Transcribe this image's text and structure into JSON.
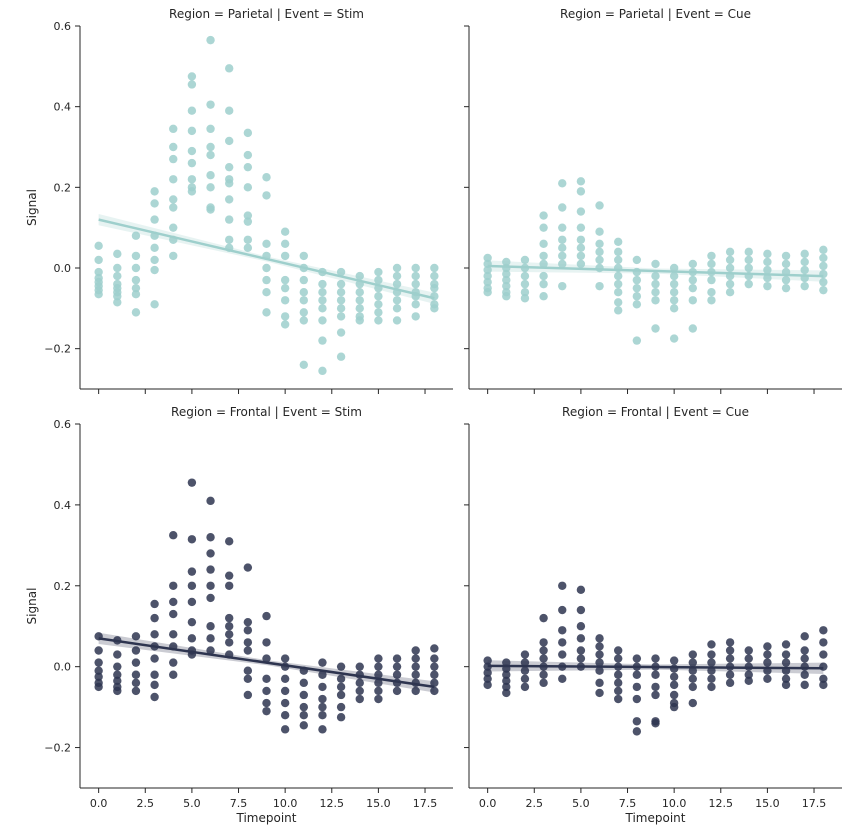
{
  "chart_data": {
    "type": "scatter",
    "layout": "facet-grid 2x2 (rows: Region, cols: Event), shared axes",
    "xlabel": "Timepoint",
    "ylabel": "Signal",
    "xlim": [
      -1,
      19
    ],
    "ylim": [
      -0.3,
      0.6
    ],
    "xticks": [
      0.0,
      2.5,
      5.0,
      7.5,
      10.0,
      12.5,
      15.0,
      17.5
    ],
    "xtick_labels": [
      "0.0",
      "2.5",
      "5.0",
      "7.5",
      "10.0",
      "12.5",
      "15.0",
      "17.5"
    ],
    "yticks": [
      -0.2,
      0.0,
      0.2,
      0.4,
      0.6
    ],
    "ytick_labels": [
      "−0.2",
      "0.0",
      "0.2",
      "0.4",
      "0.6"
    ],
    "grid": false,
    "facets": [
      {
        "title": "Region = Parietal | Event = Stim",
        "color": "#9ecfcc",
        "regression": {
          "x": [
            0,
            18
          ],
          "y": [
            0.12,
            -0.075
          ]
        },
        "points": [
          {
            "x": 0,
            "y": [
              0.055,
              0.02,
              -0.01,
              -0.025,
              -0.035,
              -0.045,
              -0.055,
              -0.065
            ]
          },
          {
            "x": 1,
            "y": [
              0.035,
              0.0,
              -0.02,
              -0.04,
              -0.05,
              -0.06,
              -0.07,
              -0.085
            ]
          },
          {
            "x": 2,
            "y": [
              0.08,
              0.03,
              0.0,
              -0.03,
              -0.05,
              -0.065,
              -0.11
            ]
          },
          {
            "x": 3,
            "y": [
              0.19,
              0.16,
              0.12,
              0.08,
              0.05,
              0.02,
              -0.005,
              -0.09
            ]
          },
          {
            "x": 4,
            "y": [
              0.345,
              0.3,
              0.27,
              0.22,
              0.17,
              0.15,
              0.1,
              0.07,
              0.03
            ]
          },
          {
            "x": 5,
            "y": [
              0.475,
              0.455,
              0.39,
              0.34,
              0.29,
              0.26,
              0.22,
              0.2,
              0.19
            ]
          },
          {
            "x": 6,
            "y": [
              0.565,
              0.405,
              0.345,
              0.3,
              0.28,
              0.23,
              0.2,
              0.15,
              0.145
            ]
          },
          {
            "x": 7,
            "y": [
              0.495,
              0.39,
              0.315,
              0.25,
              0.22,
              0.21,
              0.17,
              0.12,
              0.07,
              0.05
            ]
          },
          {
            "x": 8,
            "y": [
              0.335,
              0.28,
              0.25,
              0.2,
              0.13,
              0.115,
              0.07,
              0.05
            ]
          },
          {
            "x": 9,
            "y": [
              0.225,
              0.18,
              0.06,
              0.03,
              0.0,
              -0.03,
              -0.06,
              -0.11
            ]
          },
          {
            "x": 10,
            "y": [
              0.09,
              0.06,
              0.03,
              -0.03,
              -0.05,
              -0.08,
              -0.12,
              -0.14
            ]
          },
          {
            "x": 11,
            "y": [
              0.03,
              0.0,
              -0.03,
              -0.06,
              -0.08,
              -0.11,
              -0.13,
              -0.24
            ]
          },
          {
            "x": 12,
            "y": [
              -0.01,
              -0.04,
              -0.06,
              -0.08,
              -0.1,
              -0.13,
              -0.18,
              -0.255
            ]
          },
          {
            "x": 13,
            "y": [
              -0.01,
              -0.04,
              -0.06,
              -0.08,
              -0.1,
              -0.12,
              -0.16,
              -0.22
            ]
          },
          {
            "x": 14,
            "y": [
              -0.02,
              -0.04,
              -0.06,
              -0.08,
              -0.1,
              -0.12,
              -0.13
            ]
          },
          {
            "x": 15,
            "y": [
              -0.01,
              -0.03,
              -0.05,
              -0.07,
              -0.09,
              -0.11,
              -0.13
            ]
          },
          {
            "x": 16,
            "y": [
              0.0,
              -0.02,
              -0.04,
              -0.06,
              -0.08,
              -0.1,
              -0.13
            ]
          },
          {
            "x": 17,
            "y": [
              0.0,
              -0.02,
              -0.04,
              -0.06,
              -0.07,
              -0.09,
              -0.12
            ]
          },
          {
            "x": 18,
            "y": [
              0.0,
              -0.02,
              -0.04,
              -0.05,
              -0.07,
              -0.09,
              -0.1
            ]
          }
        ]
      },
      {
        "title": "Region = Parietal | Event = Cue",
        "color": "#9ecfcc",
        "regression": {
          "x": [
            0,
            18
          ],
          "y": [
            0.005,
            -0.02
          ]
        },
        "points": [
          {
            "x": 0,
            "y": [
              0.025,
              0.01,
              -0.005,
              -0.02,
              -0.035,
              -0.05,
              -0.06
            ]
          },
          {
            "x": 1,
            "y": [
              0.015,
              0.0,
              -0.015,
              -0.03,
              -0.045,
              -0.06,
              -0.07
            ]
          },
          {
            "x": 2,
            "y": [
              0.02,
              0.0,
              -0.02,
              -0.04,
              -0.06,
              -0.075
            ]
          },
          {
            "x": 3,
            "y": [
              0.13,
              0.1,
              0.06,
              0.03,
              0.01,
              -0.02,
              -0.04,
              -0.07
            ]
          },
          {
            "x": 4,
            "y": [
              0.21,
              0.15,
              0.1,
              0.07,
              0.05,
              0.03,
              0.01,
              -0.045
            ]
          },
          {
            "x": 5,
            "y": [
              0.215,
              0.19,
              0.14,
              0.1,
              0.07,
              0.05,
              0.03,
              0.01
            ]
          },
          {
            "x": 6,
            "y": [
              0.155,
              0.09,
              0.06,
              0.04,
              0.02,
              0.0,
              -0.045
            ]
          },
          {
            "x": 7,
            "y": [
              0.065,
              0.04,
              0.02,
              0.0,
              -0.02,
              -0.04,
              -0.06,
              -0.085,
              -0.105
            ]
          },
          {
            "x": 8,
            "y": [
              0.02,
              -0.01,
              -0.03,
              -0.05,
              -0.07,
              -0.09,
              -0.18
            ]
          },
          {
            "x": 9,
            "y": [
              0.01,
              -0.02,
              -0.04,
              -0.06,
              -0.08,
              -0.15
            ]
          },
          {
            "x": 10,
            "y": [
              0.0,
              -0.02,
              -0.04,
              -0.06,
              -0.08,
              -0.1,
              -0.175
            ]
          },
          {
            "x": 11,
            "y": [
              0.01,
              -0.01,
              -0.03,
              -0.05,
              -0.08,
              -0.15
            ]
          },
          {
            "x": 12,
            "y": [
              0.03,
              0.01,
              -0.01,
              -0.03,
              -0.06,
              -0.08
            ]
          },
          {
            "x": 13,
            "y": [
              0.04,
              0.02,
              0.0,
              -0.02,
              -0.04,
              -0.06
            ]
          },
          {
            "x": 14,
            "y": [
              0.04,
              0.02,
              0.0,
              -0.02,
              -0.04
            ]
          },
          {
            "x": 15,
            "y": [
              0.035,
              0.015,
              -0.005,
              -0.025,
              -0.045
            ]
          },
          {
            "x": 16,
            "y": [
              0.03,
              0.01,
              -0.01,
              -0.03,
              -0.05
            ]
          },
          {
            "x": 17,
            "y": [
              0.035,
              0.015,
              -0.005,
              -0.025,
              -0.045
            ]
          },
          {
            "x": 18,
            "y": [
              0.045,
              0.025,
              0.005,
              -0.015,
              -0.035,
              -0.055
            ]
          }
        ]
      },
      {
        "title": "Region = Frontal | Event = Stim",
        "color": "#2e3550",
        "regression": {
          "x": [
            0,
            18
          ],
          "y": [
            0.07,
            -0.05
          ]
        },
        "points": [
          {
            "x": 0,
            "y": [
              0.075,
              0.04,
              0.01,
              -0.01,
              -0.025,
              -0.04,
              -0.05
            ]
          },
          {
            "x": 1,
            "y": [
              0.065,
              0.03,
              0.0,
              -0.02,
              -0.035,
              -0.05,
              -0.06
            ]
          },
          {
            "x": 2,
            "y": [
              0.075,
              0.04,
              0.01,
              -0.02,
              -0.04,
              -0.06
            ]
          },
          {
            "x": 3,
            "y": [
              0.155,
              0.12,
              0.08,
              0.05,
              0.02,
              -0.02,
              -0.045,
              -0.075
            ]
          },
          {
            "x": 4,
            "y": [
              0.325,
              0.2,
              0.16,
              0.13,
              0.08,
              0.05,
              0.01,
              -0.02
            ]
          },
          {
            "x": 5,
            "y": [
              0.455,
              0.315,
              0.235,
              0.2,
              0.16,
              0.11,
              0.07,
              0.04,
              0.03
            ]
          },
          {
            "x": 6,
            "y": [
              0.41,
              0.32,
              0.28,
              0.24,
              0.2,
              0.17,
              0.1,
              0.07,
              0.04
            ]
          },
          {
            "x": 7,
            "y": [
              0.31,
              0.225,
              0.2,
              0.12,
              0.1,
              0.08,
              0.06,
              0.03
            ]
          },
          {
            "x": 8,
            "y": [
              0.245,
              0.11,
              0.09,
              0.06,
              0.04,
              -0.01,
              -0.03,
              -0.07
            ]
          },
          {
            "x": 9,
            "y": [
              0.125,
              0.06,
              0.02,
              -0.03,
              -0.06,
              -0.09,
              -0.11
            ]
          },
          {
            "x": 10,
            "y": [
              0.02,
              0.0,
              -0.03,
              -0.06,
              -0.09,
              -0.12,
              -0.155
            ]
          },
          {
            "x": 11,
            "y": [
              -0.01,
              -0.04,
              -0.07,
              -0.1,
              -0.12,
              -0.145
            ]
          },
          {
            "x": 12,
            "y": [
              0.01,
              -0.02,
              -0.05,
              -0.08,
              -0.1,
              -0.12,
              -0.155
            ]
          },
          {
            "x": 13,
            "y": [
              0.0,
              -0.03,
              -0.05,
              -0.07,
              -0.1,
              -0.125
            ]
          },
          {
            "x": 14,
            "y": [
              0.0,
              -0.02,
              -0.04,
              -0.06,
              -0.08
            ]
          },
          {
            "x": 15,
            "y": [
              0.02,
              0.0,
              -0.02,
              -0.04,
              -0.06,
              -0.08
            ]
          },
          {
            "x": 16,
            "y": [
              0.02,
              0.0,
              -0.02,
              -0.04,
              -0.06
            ]
          },
          {
            "x": 17,
            "y": [
              0.04,
              0.02,
              0.0,
              -0.02,
              -0.04,
              -0.06
            ]
          },
          {
            "x": 18,
            "y": [
              0.045,
              0.02,
              0.0,
              -0.02,
              -0.04,
              -0.06
            ]
          }
        ]
      },
      {
        "title": "Region = Frontal | Event = Cue",
        "color": "#2e3550",
        "regression": {
          "x": [
            0,
            18
          ],
          "y": [
            0.002,
            -0.004
          ]
        },
        "points": [
          {
            "x": 0,
            "y": [
              0.015,
              0.0,
              -0.015,
              -0.03,
              -0.045
            ]
          },
          {
            "x": 1,
            "y": [
              0.01,
              -0.005,
              -0.02,
              -0.035,
              -0.05,
              -0.065
            ]
          },
          {
            "x": 2,
            "y": [
              0.03,
              0.01,
              -0.01,
              -0.03,
              -0.05
            ]
          },
          {
            "x": 3,
            "y": [
              0.12,
              0.06,
              0.04,
              0.02,
              0.0,
              -0.02,
              -0.04
            ]
          },
          {
            "x": 4,
            "y": [
              0.2,
              0.14,
              0.09,
              0.06,
              0.03,
              0.0,
              -0.03
            ]
          },
          {
            "x": 5,
            "y": [
              0.19,
              0.14,
              0.1,
              0.07,
              0.04,
              0.02,
              0.0
            ]
          },
          {
            "x": 6,
            "y": [
              0.07,
              0.05,
              0.03,
              0.01,
              -0.01,
              -0.04,
              -0.065
            ]
          },
          {
            "x": 7,
            "y": [
              0.04,
              0.02,
              0.0,
              -0.02,
              -0.04,
              -0.06,
              -0.08
            ]
          },
          {
            "x": 8,
            "y": [
              0.02,
              0.0,
              -0.02,
              -0.05,
              -0.08,
              -0.135,
              -0.16
            ]
          },
          {
            "x": 9,
            "y": [
              0.02,
              0.0,
              -0.02,
              -0.05,
              -0.07,
              -0.135,
              -0.14
            ]
          },
          {
            "x": 10,
            "y": [
              0.015,
              -0.005,
              -0.025,
              -0.045,
              -0.07,
              -0.09,
              -0.1
            ]
          },
          {
            "x": 11,
            "y": [
              0.03,
              0.01,
              -0.01,
              -0.03,
              -0.05,
              -0.09
            ]
          },
          {
            "x": 12,
            "y": [
              0.055,
              0.03,
              0.01,
              -0.01,
              -0.03,
              -0.05
            ]
          },
          {
            "x": 13,
            "y": [
              0.06,
              0.04,
              0.02,
              0.0,
              -0.02,
              -0.04
            ]
          },
          {
            "x": 14,
            "y": [
              0.04,
              0.02,
              0.0,
              -0.02,
              -0.035
            ]
          },
          {
            "x": 15,
            "y": [
              0.05,
              0.03,
              0.01,
              -0.01,
              -0.03
            ]
          },
          {
            "x": 16,
            "y": [
              0.055,
              0.03,
              0.01,
              -0.01,
              -0.03,
              -0.045
            ]
          },
          {
            "x": 17,
            "y": [
              0.075,
              0.04,
              0.02,
              0.0,
              -0.02,
              -0.045
            ]
          },
          {
            "x": 18,
            "y": [
              0.09,
              0.06,
              0.03,
              0.0,
              -0.03,
              -0.045
            ]
          }
        ]
      }
    ]
  }
}
